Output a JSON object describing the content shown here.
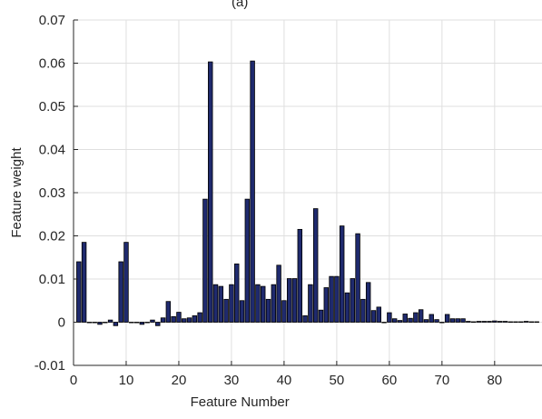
{
  "chart_data": {
    "type": "bar",
    "title": "(a)",
    "xlabel": "Feature Number",
    "ylabel": "Feature weight",
    "xlim": [
      0,
      89
    ],
    "ylim": [
      -0.01,
      0.07
    ],
    "xticks": [
      0,
      10,
      20,
      30,
      40,
      50,
      60,
      70,
      80
    ],
    "yticks": [
      -0.01,
      0,
      0.01,
      0.02,
      0.03,
      0.04,
      0.05,
      0.06,
      0.07
    ],
    "ytick_labels": [
      "-0.01",
      "0",
      "0.01",
      "0.02",
      "0.03",
      "0.04",
      "0.05",
      "0.06",
      "0.07"
    ],
    "xtick_labels": [
      "0",
      "10",
      "20",
      "30",
      "40",
      "50",
      "60",
      "70",
      "80"
    ],
    "grid": true,
    "categories": [
      1,
      2,
      3,
      4,
      5,
      6,
      7,
      8,
      9,
      10,
      11,
      12,
      13,
      14,
      15,
      16,
      17,
      18,
      19,
      20,
      21,
      22,
      23,
      24,
      25,
      26,
      27,
      28,
      29,
      30,
      31,
      32,
      33,
      34,
      35,
      36,
      37,
      38,
      39,
      40,
      41,
      42,
      43,
      44,
      45,
      46,
      47,
      48,
      49,
      50,
      51,
      52,
      53,
      54,
      55,
      56,
      57,
      58,
      59,
      60,
      61,
      62,
      63,
      64,
      65,
      66,
      67,
      68,
      69,
      70,
      71,
      72,
      73,
      74,
      75,
      76,
      77,
      78,
      79,
      80,
      81,
      82,
      83,
      84,
      85,
      86,
      87,
      88
    ],
    "values": [
      0.014,
      0.0185,
      0.0,
      0.0,
      -0.0005,
      0.0,
      0.0005,
      -0.0008,
      0.014,
      0.0185,
      0.0,
      0.0,
      -0.0005,
      0.0,
      0.0005,
      -0.0008,
      0.001,
      0.0048,
      0.0013,
      0.0023,
      0.0008,
      0.001,
      0.0015,
      0.0022,
      0.0285,
      0.0603,
      0.0087,
      0.0083,
      0.0053,
      0.0087,
      0.0135,
      0.005,
      0.0285,
      0.0605,
      0.0087,
      0.0083,
      0.0053,
      0.0087,
      0.0132,
      0.005,
      0.0101,
      0.0101,
      0.0215,
      0.0015,
      0.0087,
      0.0263,
      0.0028,
      0.008,
      0.0106,
      0.0106,
      0.0223,
      0.0068,
      0.0101,
      0.0205,
      0.0053,
      0.0092,
      0.0027,
      0.0035,
      0.0,
      0.0022,
      0.0008,
      0.0004,
      0.0019,
      0.0009,
      0.0022,
      0.0029,
      0.0006,
      0.0018,
      0.0006,
      0.0,
      0.0018,
      0.0008,
      0.0008,
      0.0008,
      0.0002,
      0.0001,
      0.0002,
      0.0002,
      0.0002,
      0.0003,
      0.0002,
      0.0002,
      0.0001,
      0.0001,
      0.0001,
      0.0002,
      0.0001,
      0.0001
    ],
    "bar_color": "#1f2a6e",
    "bar_edge_color": "#000000"
  }
}
